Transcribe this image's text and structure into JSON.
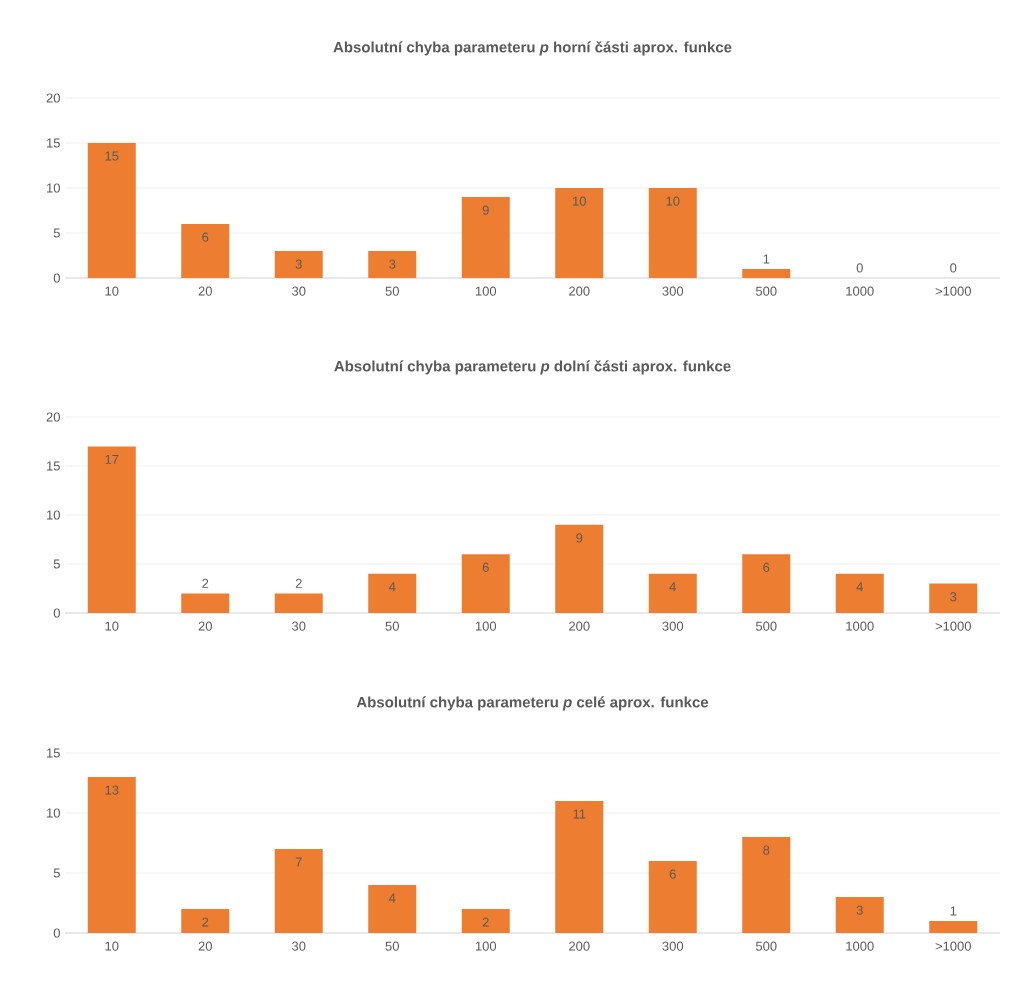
{
  "chart_data": [
    {
      "type": "bar",
      "title": "Absolutní chyba parameteru *p* horní části aprox. funkce",
      "categories": [
        "10",
        "20",
        "30",
        "50",
        "100",
        "200",
        "300",
        "500",
        "1000",
        ">1000"
      ],
      "values": [
        15,
        6,
        3,
        3,
        9,
        10,
        10,
        1,
        0,
        0
      ],
      "color": "#ed7d31",
      "ylim": [
        0,
        20
      ],
      "yticks": [
        0,
        5,
        10,
        15,
        20
      ],
      "grid": "y",
      "data_labels": true
    },
    {
      "type": "bar",
      "title": "Absolutní chyba parameteru *p* dolní části aprox. funkce",
      "categories": [
        "10",
        "20",
        "30",
        "50",
        "100",
        "200",
        "300",
        "500",
        "1000",
        ">1000"
      ],
      "values": [
        17,
        2,
        2,
        4,
        6,
        9,
        4,
        6,
        4,
        3
      ],
      "color": "#ed7d31",
      "ylim": [
        0,
        20
      ],
      "yticks": [
        0,
        5,
        10,
        15,
        20
      ],
      "grid": "y",
      "data_labels": true
    },
    {
      "type": "bar",
      "title": "Absolutní chyba parameteru *p* celé aprox. funkce",
      "categories": [
        "10",
        "20",
        "30",
        "50",
        "100",
        "200",
        "300",
        "500",
        "1000",
        ">1000"
      ],
      "values": [
        13,
        2,
        7,
        4,
        2,
        11,
        6,
        8,
        3,
        1
      ],
      "color": "#ed7d31",
      "ylim": [
        0,
        15
      ],
      "yticks": [
        0,
        5,
        10,
        15
      ],
      "grid": "y",
      "data_labels": true
    }
  ]
}
